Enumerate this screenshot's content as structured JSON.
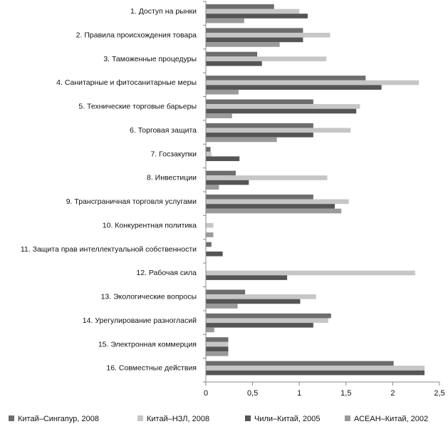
{
  "chart_data": {
    "type": "bar",
    "orientation": "horizontal",
    "categories": [
      "1. Доступ на рынки",
      "2. Правила происхождения товара",
      "3. Таможенные процедуры",
      "4. Санитарные и фитосанитарные меры",
      "5. Технические торговые барьеры",
      "6. Торговая защита",
      "7. Госзакупки",
      "8. Инвестиции",
      "9. Трансграничная торговля услугами",
      "10. Конкурентная политика",
      "11. Защита прав интеллектуальной собственности",
      "12. Рабочая сила",
      "13. Экологические вопросы",
      "14. Урегулирование разногласий",
      "15. Электронная коммерция",
      "16. Совместные действия"
    ],
    "series": [
      {
        "name": "Китай–Сингапур, 2008",
        "color": "#6d6d6d",
        "values": [
          0.73,
          1.04,
          0.55,
          1.71,
          1.15,
          1.15,
          0.05,
          0.32,
          1.15,
          0,
          0.06,
          0,
          0.42,
          1.34,
          0.24,
          2.01
        ]
      },
      {
        "name": "Китай–НЗЛ, 2008",
        "color": "#c6c6c6",
        "values": [
          1.0,
          1.33,
          1.29,
          2.28,
          1.65,
          1.55,
          0.06,
          1.3,
          1.53,
          0.08,
          0,
          2.24,
          1.18,
          1.31,
          0.24,
          2.34
        ]
      },
      {
        "name": "Чили–Китай, 2005",
        "color": "#555555",
        "values": [
          1.09,
          1.04,
          0.6,
          1.88,
          1.61,
          1.15,
          0.36,
          0.46,
          1.38,
          0,
          0.18,
          0.87,
          1.01,
          1.15,
          0.24,
          2.34
        ]
      },
      {
        "name": "АСЕАН–Китай, 2002",
        "color": "#9a9a9a",
        "values": [
          0.41,
          0.79,
          0,
          0.35,
          0.28,
          0.76,
          0,
          0.14,
          1.45,
          0.08,
          0,
          0,
          0.34,
          0.09,
          0.24,
          0
        ]
      }
    ],
    "xlim": [
      0,
      2.5
    ],
    "xticks": [
      0,
      0.5,
      1,
      1.5,
      2,
      2.5
    ],
    "xtick_labels": [
      "0",
      "0,5",
      "1",
      "1,5",
      "2",
      "2,5"
    ],
    "grid": false,
    "legend_placement": "bottom"
  }
}
